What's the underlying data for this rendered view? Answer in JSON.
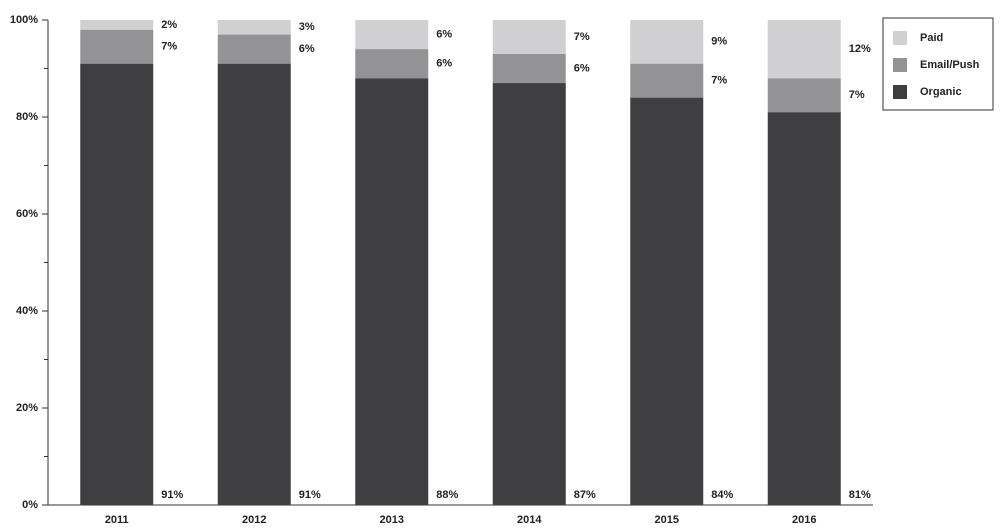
{
  "chart_data": {
    "type": "stacked_bar",
    "categories": [
      "2011",
      "2012",
      "2013",
      "2014",
      "2015",
      "2016"
    ],
    "series": [
      {
        "name": "Organic",
        "color": "#3f3f41",
        "values": [
          91,
          91,
          88,
          87,
          84,
          81
        ],
        "value_labels": [
          "91%",
          "91%",
          "88%",
          "87%",
          "84%",
          "81%"
        ]
      },
      {
        "name": "Email/Push",
        "color": "#939395",
        "values": [
          7,
          6,
          6,
          6,
          7,
          7
        ],
        "value_labels": [
          "7%",
          "6%",
          "6%",
          "6%",
          "7%",
          "7%"
        ]
      },
      {
        "name": "Paid",
        "color": "#d0d0d2",
        "values": [
          2,
          3,
          6,
          7,
          9,
          12
        ],
        "value_labels": [
          "2%",
          "3%",
          "6%",
          "7%",
          "9%",
          "12%"
        ]
      }
    ],
    "ylim": [
      0,
      100
    ],
    "yticks": [
      {
        "value": 0,
        "label": "0%"
      },
      {
        "value": 20,
        "label": "20%"
      },
      {
        "value": 40,
        "label": "40%"
      },
      {
        "value": 60,
        "label": "60%"
      },
      {
        "value": 80,
        "label": "80%"
      },
      {
        "value": 100,
        "label": "100%"
      }
    ],
    "legend": "top-right"
  }
}
